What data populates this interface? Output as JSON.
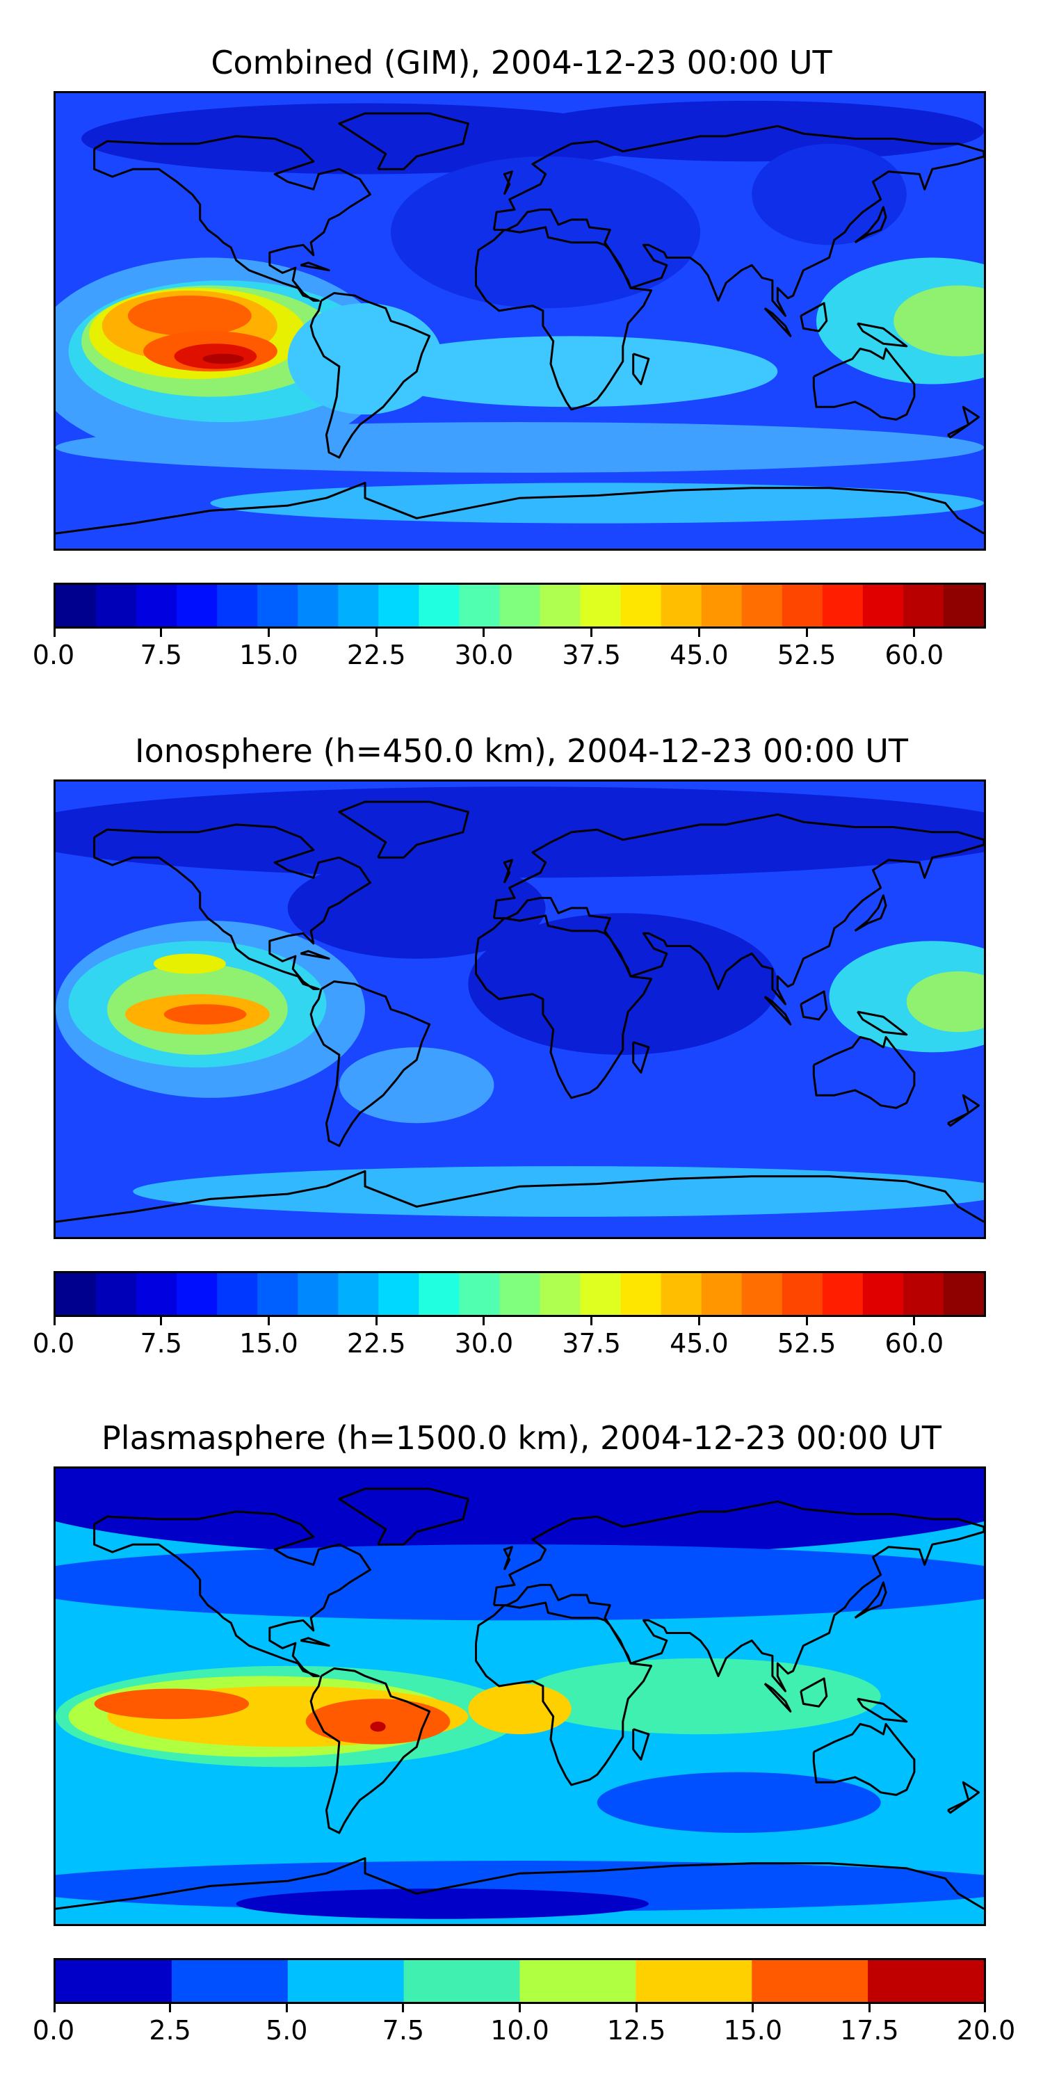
{
  "panels": [
    {
      "title": "Combined (GIM), 2004-12-23 00:00 UT",
      "field": {
        "background": "#1a46ff",
        "regions": [
          {
            "color": "#0a1fd6",
            "lon": -60,
            "lat": 72,
            "rx": 110,
            "ry": 14
          },
          {
            "color": "#0a1fd6",
            "lon": 90,
            "lat": 75,
            "rx": 90,
            "ry": 12
          },
          {
            "color": "#0f2fe8",
            "lon": 10,
            "lat": 35,
            "rx": 60,
            "ry": 30
          },
          {
            "color": "#0f2fe8",
            "lon": 120,
            "lat": 50,
            "rx": 30,
            "ry": 20
          },
          {
            "color": "#3fa0ff",
            "lon": -120,
            "lat": -15,
            "rx": 70,
            "ry": 40
          },
          {
            "color": "#32d6f0",
            "lon": -115,
            "lat": -12,
            "rx": 60,
            "ry": 28
          },
          {
            "color": "#90f070",
            "lon": -120,
            "lat": -8,
            "rx": 50,
            "ry": 22
          },
          {
            "color": "#e6f000",
            "lon": -125,
            "lat": -5,
            "rx": 42,
            "ry": 18
          },
          {
            "color": "#ffb000",
            "lon": -128,
            "lat": -2,
            "rx": 34,
            "ry": 14
          },
          {
            "color": "#ff6000",
            "lon": -128,
            "lat": 2,
            "rx": 24,
            "ry": 8
          },
          {
            "color": "#ff5a00",
            "lon": -120,
            "lat": -12,
            "rx": 26,
            "ry": 8
          },
          {
            "color": "#e01000",
            "lon": -118,
            "lat": -14,
            "rx": 16,
            "ry": 5
          },
          {
            "color": "#b00000",
            "lon": -115,
            "lat": -15,
            "rx": 8,
            "ry": 2
          },
          {
            "color": "#3fc8ff",
            "lon": -60,
            "lat": -15,
            "rx": 30,
            "ry": 22
          },
          {
            "color": "#3fc8ff",
            "lon": 20,
            "lat": -20,
            "rx": 80,
            "ry": 14
          },
          {
            "color": "#32d6f0",
            "lon": 160,
            "lat": 0,
            "rx": 45,
            "ry": 25
          },
          {
            "color": "#90f070",
            "lon": 170,
            "lat": 0,
            "rx": 25,
            "ry": 14
          },
          {
            "color": "#3fa0ff",
            "lon": 0,
            "lat": -50,
            "rx": 180,
            "ry": 10
          },
          {
            "color": "#32b8ff",
            "lon": 30,
            "lat": -72,
            "rx": 150,
            "ry": 8
          }
        ]
      },
      "colorbar": {
        "min": 0.0,
        "max": 65.0,
        "colors": [
          "#00008f",
          "#0000b8",
          "#0000e0",
          "#0010ff",
          "#0038ff",
          "#0060ff",
          "#0088ff",
          "#00b0ff",
          "#00d8ff",
          "#20ffdf",
          "#50ffaf",
          "#80ff7f",
          "#afff50",
          "#dfff20",
          "#ffe600",
          "#ffbf00",
          "#ff9600",
          "#ff6e00",
          "#ff4600",
          "#ff1e00",
          "#e00000",
          "#b80000",
          "#8f0000"
        ],
        "ticks": [
          "0.0",
          "7.5",
          "15.0",
          "22.5",
          "30.0",
          "37.5",
          "45.0",
          "52.5",
          "60.0"
        ],
        "tick_values": [
          0.0,
          7.5,
          15.0,
          22.5,
          30.0,
          37.5,
          45.0,
          52.5,
          60.0
        ]
      }
    },
    {
      "title": "Ionosphere  (h=450.0 km), 2004-12-23 00:00 UT",
      "field": {
        "background": "#1a46ff",
        "regions": [
          {
            "color": "#0a1fd6",
            "lon": 0,
            "lat": 70,
            "rx": 200,
            "ry": 18
          },
          {
            "color": "#0a1fd6",
            "lon": 40,
            "lat": 10,
            "rx": 60,
            "ry": 28
          },
          {
            "color": "#0a1fd6",
            "lon": -40,
            "lat": 40,
            "rx": 50,
            "ry": 20
          },
          {
            "color": "#3fa0ff",
            "lon": -120,
            "lat": 0,
            "rx": 60,
            "ry": 35
          },
          {
            "color": "#32d6f0",
            "lon": -125,
            "lat": 2,
            "rx": 50,
            "ry": 25
          },
          {
            "color": "#90f070",
            "lon": -125,
            "lat": 0,
            "rx": 35,
            "ry": 18
          },
          {
            "color": "#e6f000",
            "lon": -128,
            "lat": 18,
            "rx": 14,
            "ry": 4
          },
          {
            "color": "#ffb000",
            "lon": -125,
            "lat": -2,
            "rx": 28,
            "ry": 8
          },
          {
            "color": "#ff5a00",
            "lon": -122,
            "lat": -2,
            "rx": 16,
            "ry": 4
          },
          {
            "color": "#32d6f0",
            "lon": 160,
            "lat": 5,
            "rx": 40,
            "ry": 22
          },
          {
            "color": "#90f070",
            "lon": 170,
            "lat": 3,
            "rx": 20,
            "ry": 12
          },
          {
            "color": "#3fa0ff",
            "lon": -40,
            "lat": -30,
            "rx": 30,
            "ry": 15
          },
          {
            "color": "#32b8ff",
            "lon": 20,
            "lat": -72,
            "rx": 170,
            "ry": 10
          }
        ]
      },
      "colorbar": {
        "min": 0.0,
        "max": 65.0,
        "colors": [
          "#00008f",
          "#0000b8",
          "#0000e0",
          "#0010ff",
          "#0038ff",
          "#0060ff",
          "#0088ff",
          "#00b0ff",
          "#00d8ff",
          "#20ffdf",
          "#50ffaf",
          "#80ff7f",
          "#afff50",
          "#dfff20",
          "#ffe600",
          "#ffbf00",
          "#ff9600",
          "#ff6e00",
          "#ff4600",
          "#ff1e00",
          "#e00000",
          "#b80000",
          "#8f0000"
        ],
        "ticks": [
          "0.0",
          "7.5",
          "15.0",
          "22.5",
          "30.0",
          "37.5",
          "45.0",
          "52.5",
          "60.0"
        ],
        "tick_values": [
          0.0,
          7.5,
          15.0,
          22.5,
          30.0,
          37.5,
          45.0,
          52.5,
          60.0
        ]
      }
    },
    {
      "title": "Plasmasphere (h=1500.0 km), 2004-12-23 00:00 UT",
      "field": {
        "background": "#00c0ff",
        "regions": [
          {
            "color": "#0000c8",
            "lon": 0,
            "lat": 80,
            "rx": 200,
            "ry": 25
          },
          {
            "color": "#0050ff",
            "lon": 0,
            "lat": 45,
            "rx": 200,
            "ry": 15
          },
          {
            "color": "#40f0b0",
            "lon": 70,
            "lat": 0,
            "rx": 70,
            "ry": 15
          },
          {
            "color": "#40f0b0",
            "lon": -90,
            "lat": -8,
            "rx": 90,
            "ry": 20
          },
          {
            "color": "#b0ff40",
            "lon": -100,
            "lat": -8,
            "rx": 75,
            "ry": 16
          },
          {
            "color": "#ffd000",
            "lon": -90,
            "lat": -8,
            "rx": 70,
            "ry": 12
          },
          {
            "color": "#ffd000",
            "lon": 0,
            "lat": -5,
            "rx": 20,
            "ry": 10
          },
          {
            "color": "#ff5a00",
            "lon": -135,
            "lat": -3,
            "rx": 30,
            "ry": 6
          },
          {
            "color": "#ff5a00",
            "lon": -55,
            "lat": -10,
            "rx": 28,
            "ry": 9
          },
          {
            "color": "#c00000",
            "lon": -55,
            "lat": -12,
            "rx": 3,
            "ry": 2
          },
          {
            "color": "#0050ff",
            "lon": 85,
            "lat": -42,
            "rx": 55,
            "ry": 12
          },
          {
            "color": "#0050ff",
            "lon": 0,
            "lat": -75,
            "rx": 200,
            "ry": 10
          },
          {
            "color": "#0000c8",
            "lon": -30,
            "lat": -82,
            "rx": 80,
            "ry": 6
          }
        ]
      },
      "colorbar": {
        "min": 0.0,
        "max": 20.0,
        "colors": [
          "#0000c8",
          "#0050ff",
          "#00c0ff",
          "#40f0b0",
          "#b0ff40",
          "#ffd000",
          "#ff5a00",
          "#c00000"
        ],
        "ticks": [
          "0.0",
          "2.5",
          "5.0",
          "7.5",
          "10.0",
          "12.5",
          "15.0",
          "17.5",
          "20.0"
        ],
        "tick_values": [
          0.0,
          2.5,
          5.0,
          7.5,
          10.0,
          12.5,
          15.0,
          17.5,
          20.0
        ]
      }
    }
  ],
  "coastline_color": "#000000",
  "map_extent": {
    "lon": [
      -180,
      180
    ],
    "lat": [
      -90,
      90
    ]
  }
}
